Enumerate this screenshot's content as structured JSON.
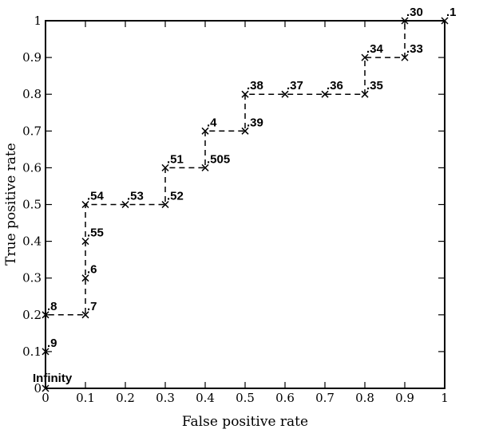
{
  "chart_data": {
    "type": "line",
    "xlabel": "False positive rate",
    "ylabel": "True positive rate",
    "xlim": [
      0,
      1
    ],
    "ylim": [
      0,
      1
    ],
    "x_ticks": [
      0,
      0.1,
      0.2,
      0.3,
      0.4,
      0.5,
      0.6,
      0.7,
      0.8,
      0.9,
      1
    ],
    "y_ticks": [
      0,
      0.1,
      0.2,
      0.3,
      0.4,
      0.5,
      0.6,
      0.7,
      0.8,
      0.9,
      1
    ],
    "x_tick_labels": [
      "0",
      "0.1",
      "0.2",
      "0.3",
      "0.4",
      "0.5",
      "0.6",
      "0.7",
      "0.8",
      "0.9",
      "1"
    ],
    "y_tick_labels": [
      "0",
      "0.1",
      "0.2",
      "0.3",
      "0.4",
      "0.5",
      "0.6",
      "0.7",
      "0.8",
      "0.9",
      "1"
    ],
    "grid": false,
    "line_style": "dashed",
    "marker": "x",
    "points": [
      {
        "x": 0,
        "y": 0,
        "label": "Infinity"
      },
      {
        "x": 0,
        "y": 0.1,
        "label": ".9"
      },
      {
        "x": 0,
        "y": 0.2,
        "label": ".8"
      },
      {
        "x": 0.1,
        "y": 0.2,
        "label": ".7"
      },
      {
        "x": 0.1,
        "y": 0.3,
        "label": ".6"
      },
      {
        "x": 0.1,
        "y": 0.4,
        "label": ".55"
      },
      {
        "x": 0.1,
        "y": 0.5,
        "label": ".54"
      },
      {
        "x": 0.2,
        "y": 0.5,
        "label": ".53"
      },
      {
        "x": 0.3,
        "y": 0.5,
        "label": ".52"
      },
      {
        "x": 0.3,
        "y": 0.6,
        "label": ".51"
      },
      {
        "x": 0.4,
        "y": 0.6,
        "label": ".505"
      },
      {
        "x": 0.4,
        "y": 0.7,
        "label": ".4"
      },
      {
        "x": 0.5,
        "y": 0.7,
        "label": ".39"
      },
      {
        "x": 0.5,
        "y": 0.8,
        "label": ".38"
      },
      {
        "x": 0.6,
        "y": 0.8,
        "label": ".37"
      },
      {
        "x": 0.7,
        "y": 0.8,
        "label": ".36"
      },
      {
        "x": 0.8,
        "y": 0.8,
        "label": ".35"
      },
      {
        "x": 0.8,
        "y": 0.9,
        "label": ".34"
      },
      {
        "x": 0.9,
        "y": 0.9,
        "label": ".33"
      },
      {
        "x": 0.9,
        "y": 1,
        "label": ".30"
      },
      {
        "x": 1,
        "y": 1,
        "label": ".1"
      }
    ]
  }
}
